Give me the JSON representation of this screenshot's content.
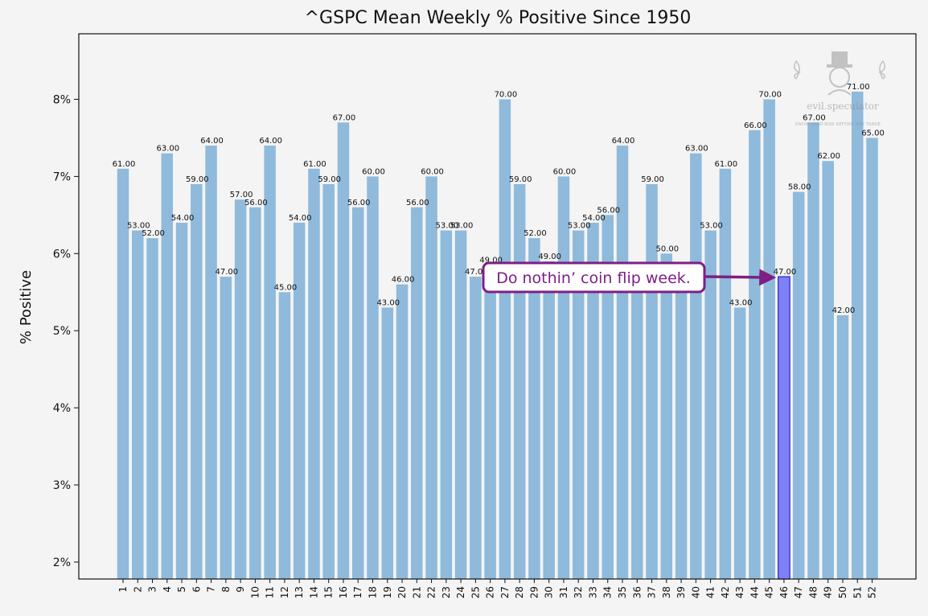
{
  "chart_data": {
    "type": "bar",
    "title": "^GSPC Mean Weekly % Positive Since 1950",
    "xlabel": "",
    "ylabel": "% Positive",
    "ylim": [
      1.78,
      8.85
    ],
    "yticks": [
      2,
      3,
      4,
      5,
      6,
      7,
      8
    ],
    "ytick_labels": [
      "2%",
      "3%",
      "4%",
      "5%",
      "6%",
      "7%",
      "8%"
    ],
    "grid": false,
    "categories": [
      "1",
      "2",
      "3",
      "4",
      "5",
      "6",
      "7",
      "8",
      "9",
      "10",
      "11",
      "12",
      "13",
      "14",
      "15",
      "16",
      "17",
      "18",
      "19",
      "20",
      "21",
      "22",
      "23",
      "24",
      "25",
      "26",
      "27",
      "28",
      "29",
      "30",
      "31",
      "32",
      "33",
      "34",
      "35",
      "36",
      "37",
      "38",
      "39",
      "40",
      "41",
      "42",
      "43",
      "44",
      "45",
      "46",
      "47",
      "48",
      "49",
      "50",
      "51",
      "52"
    ],
    "values": [
      7.1,
      6.3,
      6.2,
      7.3,
      6.4,
      6.9,
      7.4,
      5.7,
      6.7,
      6.6,
      7.4,
      5.5,
      6.4,
      7.1,
      6.9,
      7.7,
      6.6,
      7.0,
      5.3,
      5.6,
      6.6,
      7.0,
      6.3,
      6.3,
      5.7,
      5.85,
      8.0,
      6.9,
      6.2,
      5.9,
      7.0,
      6.3,
      6.4,
      6.5,
      7.4,
      5.7,
      6.9,
      6.0,
      5.7,
      7.3,
      6.3,
      7.1,
      5.3,
      7.6,
      8.0,
      5.7,
      6.8,
      7.7,
      7.2,
      5.2,
      8.1,
      7.5
    ],
    "labels": [
      "61.00",
      "53.00",
      "52.00",
      "63.00",
      "54.00",
      "59.00",
      "64.00",
      "47.00",
      "57.00",
      "56.00",
      "64.00",
      "45.00",
      "54.00",
      "61.00",
      "59.00",
      "67.00",
      "56.00",
      "60.00",
      "43.00",
      "46.00",
      "56.00",
      "60.00",
      "53.00",
      "53.00",
      "47.00",
      "49.00",
      "70.00",
      "59.00",
      "52.00",
      "49.00",
      "60.00",
      "53.00",
      "54.00",
      "56.00",
      "64.00",
      "",
      "59.00",
      "50.00",
      "",
      "63.00",
      "53.00",
      "61.00",
      "43.00",
      "66.00",
      "70.00",
      "47.00",
      "58.00",
      "67.00",
      "62.00",
      "42.00",
      "71.00",
      "65.00"
    ],
    "highlight_index": 45,
    "colors": {
      "bar": "#8fbadb",
      "highlight_fill": "#7e80f5",
      "highlight_edge": "#2222dd",
      "highlight_tick": "#1a1adf",
      "annotation": "#7d1f85",
      "annotation_fill": "#ffffff"
    },
    "annotation": {
      "text": "Do nothin’ coin flip week.",
      "target_category": "46"
    }
  },
  "watermark": {
    "brand": "evil.speculator",
    "tagline": "KNOW YOUR RISK BEFORE YOU TRADE"
  }
}
